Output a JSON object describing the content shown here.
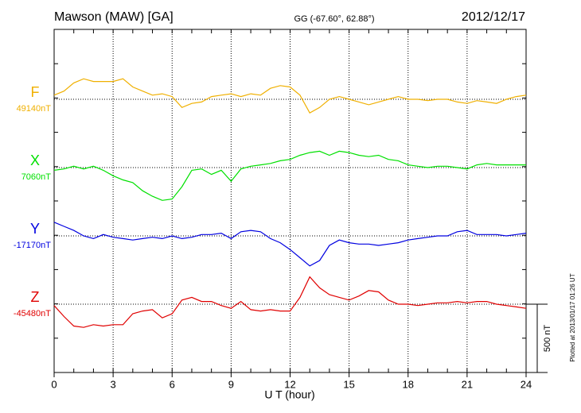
{
  "chart_data": {
    "type": "line",
    "title": "Mawson (MAW)  [GA]",
    "subtitle": "GG (-67.60°,  62.88°)",
    "date": "2012/12/17",
    "x_label": "U T (hour)",
    "footnote": "Plotted at 2013/01/17 01:26 UT",
    "scale_bar": {
      "value": 500,
      "label": "500 nT"
    },
    "xlim": [
      0,
      24
    ],
    "xticks": [
      0,
      3,
      6,
      9,
      12,
      15,
      18,
      21,
      24
    ],
    "grid": true,
    "x": [
      0,
      0.5,
      1,
      1.5,
      2,
      2.5,
      3,
      3.5,
      4,
      4.5,
      5,
      5.5,
      6,
      6.5,
      7,
      7.5,
      8,
      8.5,
      9,
      9.5,
      10,
      10.5,
      11,
      11.5,
      12,
      12.5,
      13,
      13.5,
      14,
      14.5,
      15,
      15.5,
      16,
      16.5,
      17,
      17.5,
      18,
      18.5,
      19,
      19.5,
      20,
      20.5,
      21,
      21.5,
      22,
      22.5,
      23,
      23.5,
      24
    ],
    "series": [
      {
        "name": "F",
        "color": "#f0b000",
        "baseline": {
          "value": 49140,
          "label": "49140nT"
        },
        "values": [
          49170,
          49200,
          49260,
          49290,
          49270,
          49270,
          49270,
          49290,
          49230,
          49200,
          49170,
          49180,
          49160,
          49080,
          49110,
          49120,
          49160,
          49170,
          49180,
          49160,
          49180,
          49170,
          49220,
          49240,
          49230,
          49170,
          49040,
          49080,
          49140,
          49160,
          49140,
          49120,
          49100,
          49120,
          49140,
          49160,
          49140,
          49140,
          49130,
          49140,
          49140,
          49120,
          49110,
          49130,
          49120,
          49110,
          49140,
          49160,
          49170
        ]
      },
      {
        "name": "X",
        "color": "#00e000",
        "baseline": {
          "value": 7060,
          "label": "7060nT"
        },
        "values": [
          7040,
          7050,
          7070,
          7050,
          7070,
          7040,
          7000,
          6970,
          6950,
          6890,
          6850,
          6820,
          6830,
          6920,
          7040,
          7050,
          7010,
          7040,
          6960,
          7050,
          7070,
          7080,
          7090,
          7110,
          7120,
          7150,
          7170,
          7180,
          7150,
          7180,
          7170,
          7150,
          7140,
          7150,
          7120,
          7110,
          7080,
          7070,
          7060,
          7070,
          7070,
          7060,
          7050,
          7080,
          7090,
          7080,
          7080,
          7080,
          7080
        ]
      },
      {
        "name": "Y",
        "color": "#0000e0",
        "baseline": {
          "value": -17170,
          "label": "-17170nT"
        },
        "values": [
          -17070,
          -17100,
          -17130,
          -17170,
          -17190,
          -17160,
          -17180,
          -17190,
          -17200,
          -17190,
          -17180,
          -17190,
          -17170,
          -17190,
          -17180,
          -17160,
          -17160,
          -17150,
          -17190,
          -17140,
          -17130,
          -17140,
          -17190,
          -17220,
          -17270,
          -17330,
          -17390,
          -17350,
          -17240,
          -17200,
          -17220,
          -17230,
          -17230,
          -17240,
          -17230,
          -17220,
          -17200,
          -17190,
          -17180,
          -17170,
          -17170,
          -17140,
          -17130,
          -17160,
          -17160,
          -17160,
          -17170,
          -17160,
          -17150
        ]
      },
      {
        "name": "Z",
        "color": "#e00000",
        "baseline": {
          "value": -45480,
          "label": "-45480nT"
        },
        "values": [
          -45490,
          -45570,
          -45640,
          -45650,
          -45630,
          -45640,
          -45630,
          -45630,
          -45550,
          -45530,
          -45520,
          -45580,
          -45550,
          -45450,
          -45430,
          -45460,
          -45460,
          -45490,
          -45510,
          -45460,
          -45520,
          -45530,
          -45520,
          -45530,
          -45530,
          -45430,
          -45280,
          -45360,
          -45410,
          -45430,
          -45450,
          -45420,
          -45380,
          -45390,
          -45450,
          -45480,
          -45480,
          -45490,
          -45480,
          -45470,
          -45470,
          -45460,
          -45470,
          -45460,
          -45460,
          -45480,
          -45490,
          -45500,
          -45510
        ]
      }
    ]
  }
}
